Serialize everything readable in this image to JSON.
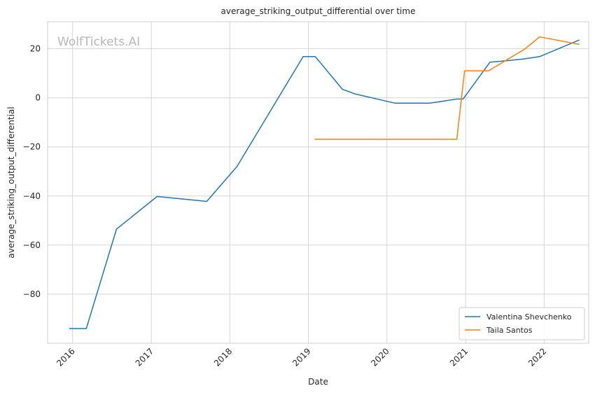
{
  "chart_data": {
    "type": "line",
    "title": "average_striking_output_differential over time",
    "xlabel": "Date",
    "ylabel": "average_striking_output_differential",
    "xlim": [
      "2015-09-07",
      "2022-07-27"
    ],
    "ylim": [
      -100,
      31
    ],
    "xticks": [
      {
        "label": "2016",
        "date": "2016-01-01"
      },
      {
        "label": "2017",
        "date": "2017-01-01"
      },
      {
        "label": "2018",
        "date": "2018-01-01"
      },
      {
        "label": "2019",
        "date": "2019-01-01"
      },
      {
        "label": "2020",
        "date": "2020-01-01"
      },
      {
        "label": "2021",
        "date": "2021-01-01"
      },
      {
        "label": "2022",
        "date": "2022-01-01"
      }
    ],
    "yticks": [
      20,
      0,
      -20,
      -40,
      -60,
      -80
    ],
    "grid": true,
    "legend": "lower-right",
    "watermark": "WolfTickets.AI",
    "series": [
      {
        "name": "Valentina Shevchenko",
        "color": "#1f77b4",
        "points": [
          {
            "x": "2015-12-19",
            "y": -94.0
          },
          {
            "x": "2016-03-05",
            "y": -94.0
          },
          {
            "x": "2016-07-23",
            "y": -53.5
          },
          {
            "x": "2017-01-28",
            "y": -40.2
          },
          {
            "x": "2017-09-16",
            "y": -42.2
          },
          {
            "x": "2018-02-03",
            "y": -28.0
          },
          {
            "x": "2018-12-08",
            "y": 16.8
          },
          {
            "x": "2019-02-02",
            "y": 16.8
          },
          {
            "x": "2019-06-08",
            "y": 3.5
          },
          {
            "x": "2019-08-10",
            "y": 1.5
          },
          {
            "x": "2020-02-08",
            "y": -2.2
          },
          {
            "x": "2020-07-18",
            "y": -2.2
          },
          {
            "x": "2020-11-21",
            "y": -0.5
          },
          {
            "x": "2020-12-20",
            "y": -0.5
          },
          {
            "x": "2021-04-24",
            "y": 14.5
          },
          {
            "x": "2021-06-26",
            "y": 15.0
          },
          {
            "x": "2021-09-25",
            "y": 15.8
          },
          {
            "x": "2021-12-11",
            "y": 16.8
          },
          {
            "x": "2022-06-11",
            "y": 23.5
          }
        ]
      },
      {
        "name": "Taila Santos",
        "color": "#ff7f0e",
        "points": [
          {
            "x": "2019-02-02",
            "y": -16.9
          },
          {
            "x": "2020-11-21",
            "y": -16.9
          },
          {
            "x": "2020-12-27",
            "y": 11.0
          },
          {
            "x": "2021-04-17",
            "y": 11.0
          },
          {
            "x": "2021-10-02",
            "y": 19.8
          },
          {
            "x": "2021-12-11",
            "y": 24.8
          },
          {
            "x": "2022-06-11",
            "y": 21.8
          }
        ]
      }
    ]
  }
}
